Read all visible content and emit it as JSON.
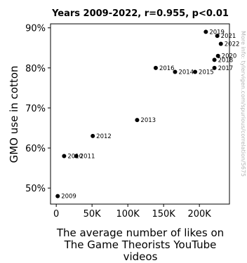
{
  "chart_data": {
    "type": "scatter",
    "title": "Years 2009-2022, r=0.955, p<0.01",
    "xlabel": [
      "The average number of likes on",
      "The Game Theorists YouTube",
      "videos"
    ],
    "ylabel": "GMO use in cotton",
    "xlim": [
      -8000,
      242000
    ],
    "ylim": [
      46,
      91
    ],
    "x_ticks": [
      {
        "value": 0,
        "label": "0"
      },
      {
        "value": 50000,
        "label": "50K"
      },
      {
        "value": 100000,
        "label": "100K"
      },
      {
        "value": 150000,
        "label": "150K"
      },
      {
        "value": 200000,
        "label": "200K"
      }
    ],
    "y_ticks": [
      {
        "value": 50,
        "label": "50%"
      },
      {
        "value": 60,
        "label": "60%"
      },
      {
        "value": 70,
        "label": "70%"
      },
      {
        "value": 80,
        "label": "80%"
      },
      {
        "value": 90,
        "label": "90%"
      }
    ],
    "points": [
      {
        "label": "2009",
        "x": 2000,
        "y": 48
      },
      {
        "label": "2010",
        "x": 11000,
        "y": 58
      },
      {
        "label": "2011",
        "x": 28000,
        "y": 58
      },
      {
        "label": "2012",
        "x": 51000,
        "y": 63
      },
      {
        "label": "2013",
        "x": 113000,
        "y": 67
      },
      {
        "label": "2016",
        "x": 139000,
        "y": 80
      },
      {
        "label": "2014",
        "x": 166000,
        "y": 79
      },
      {
        "label": "2015",
        "x": 194000,
        "y": 79
      },
      {
        "label": "2017",
        "x": 221000,
        "y": 80
      },
      {
        "label": "2018",
        "x": 221000,
        "y": 82
      },
      {
        "label": "2020",
        "x": 226000,
        "y": 83
      },
      {
        "label": "2022",
        "x": 230000,
        "y": 86
      },
      {
        "label": "2021",
        "x": 225000,
        "y": 88
      },
      {
        "label": "2019",
        "x": 209000,
        "y": 89
      }
    ],
    "grid": false,
    "marker_color": "#000000"
  },
  "watermark": "More info: tylervigen.com/spurious/correlation/5675"
}
